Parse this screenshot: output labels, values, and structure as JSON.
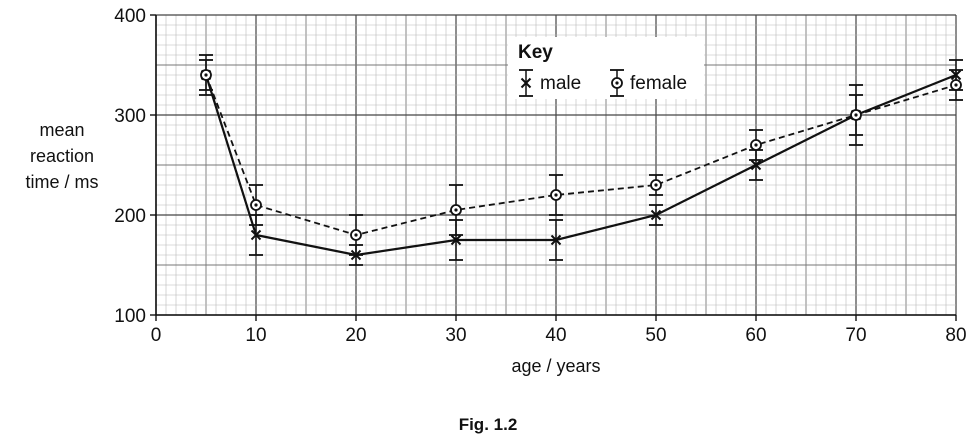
{
  "chart_data": {
    "type": "line",
    "x": [
      5,
      10,
      20,
      30,
      40,
      50,
      60,
      70,
      80
    ],
    "xlabel": "age / years",
    "ylabel_lines": [
      "mean",
      "reaction",
      "time / ms"
    ],
    "xlim": [
      0,
      80
    ],
    "ylim": [
      100,
      400
    ],
    "x_ticks": [
      0,
      10,
      20,
      30,
      40,
      50,
      60,
      70,
      80
    ],
    "y_ticks": [
      100,
      200,
      300,
      400
    ],
    "grid": true,
    "legend_title": "Key",
    "legend_position": "top-right",
    "series": [
      {
        "name": "male",
        "marker": "cross",
        "line_style": "solid",
        "values": [
          340,
          180,
          160,
          175,
          175,
          200,
          250,
          300,
          340
        ],
        "error_low": [
          325,
          160,
          150,
          155,
          155,
          190,
          235,
          280,
          325
        ],
        "error_high": [
          355,
          200,
          170,
          195,
          195,
          210,
          265,
          320,
          355
        ]
      },
      {
        "name": "female",
        "marker": "circle-dot",
        "line_style": "dashed",
        "values": [
          340,
          210,
          180,
          205,
          220,
          230,
          270,
          300,
          330
        ],
        "error_low": [
          320,
          190,
          160,
          180,
          200,
          220,
          255,
          270,
          315
        ],
        "error_high": [
          360,
          230,
          200,
          230,
          240,
          240,
          285,
          330,
          345
        ]
      }
    ]
  },
  "caption": "Fig. 1.2"
}
